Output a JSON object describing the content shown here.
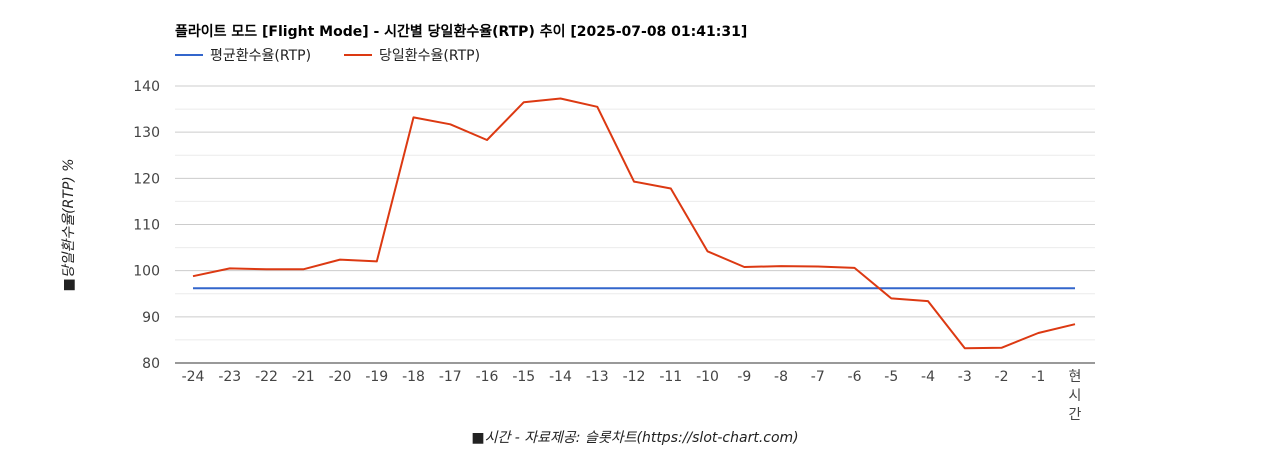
{
  "chart_data": {
    "type": "line",
    "title": "플라이트 모드 [Flight Mode] - 시간별 당일환수율(RTP) 추이 [2025-07-08 01:41:31]",
    "xlabel": "■시간 - 자료제공: 슬롯차트(https://slot-chart.com)",
    "ylabel": "■당일환수율(RTP) %",
    "ylim": [
      80,
      140
    ],
    "y_ticks": [
      "80",
      "90",
      "100",
      "110",
      "120",
      "130",
      "140"
    ],
    "categories": [
      "-24",
      "-23",
      "-22",
      "-21",
      "-20",
      "-19",
      "-18",
      "-17",
      "-16",
      "-15",
      "-14",
      "-13",
      "-12",
      "-11",
      "-10",
      "-9",
      "-8",
      "-7",
      "-6",
      "-5",
      "-4",
      "-3",
      "-2",
      "-1",
      "현시간"
    ],
    "grid": true,
    "legend_position": "top-left",
    "series": [
      {
        "name": "평균환수율(RTP)",
        "color": "#3366cc",
        "values": [
          96.2,
          96.2,
          96.2,
          96.2,
          96.2,
          96.2,
          96.2,
          96.2,
          96.2,
          96.2,
          96.2,
          96.2,
          96.2,
          96.2,
          96.2,
          96.2,
          96.2,
          96.2,
          96.2,
          96.2,
          96.2,
          96.2,
          96.2,
          96.2,
          96.2
        ]
      },
      {
        "name": "당일환수율(RTP)",
        "color": "#dc3912",
        "values": [
          98.8,
          100.5,
          100.3,
          100.3,
          102.4,
          102.0,
          133.2,
          131.7,
          128.3,
          136.5,
          137.3,
          135.5,
          119.3,
          117.8,
          104.2,
          100.8,
          101.0,
          100.9,
          100.6,
          94.0,
          93.4,
          83.2,
          83.3,
          86.5,
          88.4
        ]
      }
    ]
  }
}
